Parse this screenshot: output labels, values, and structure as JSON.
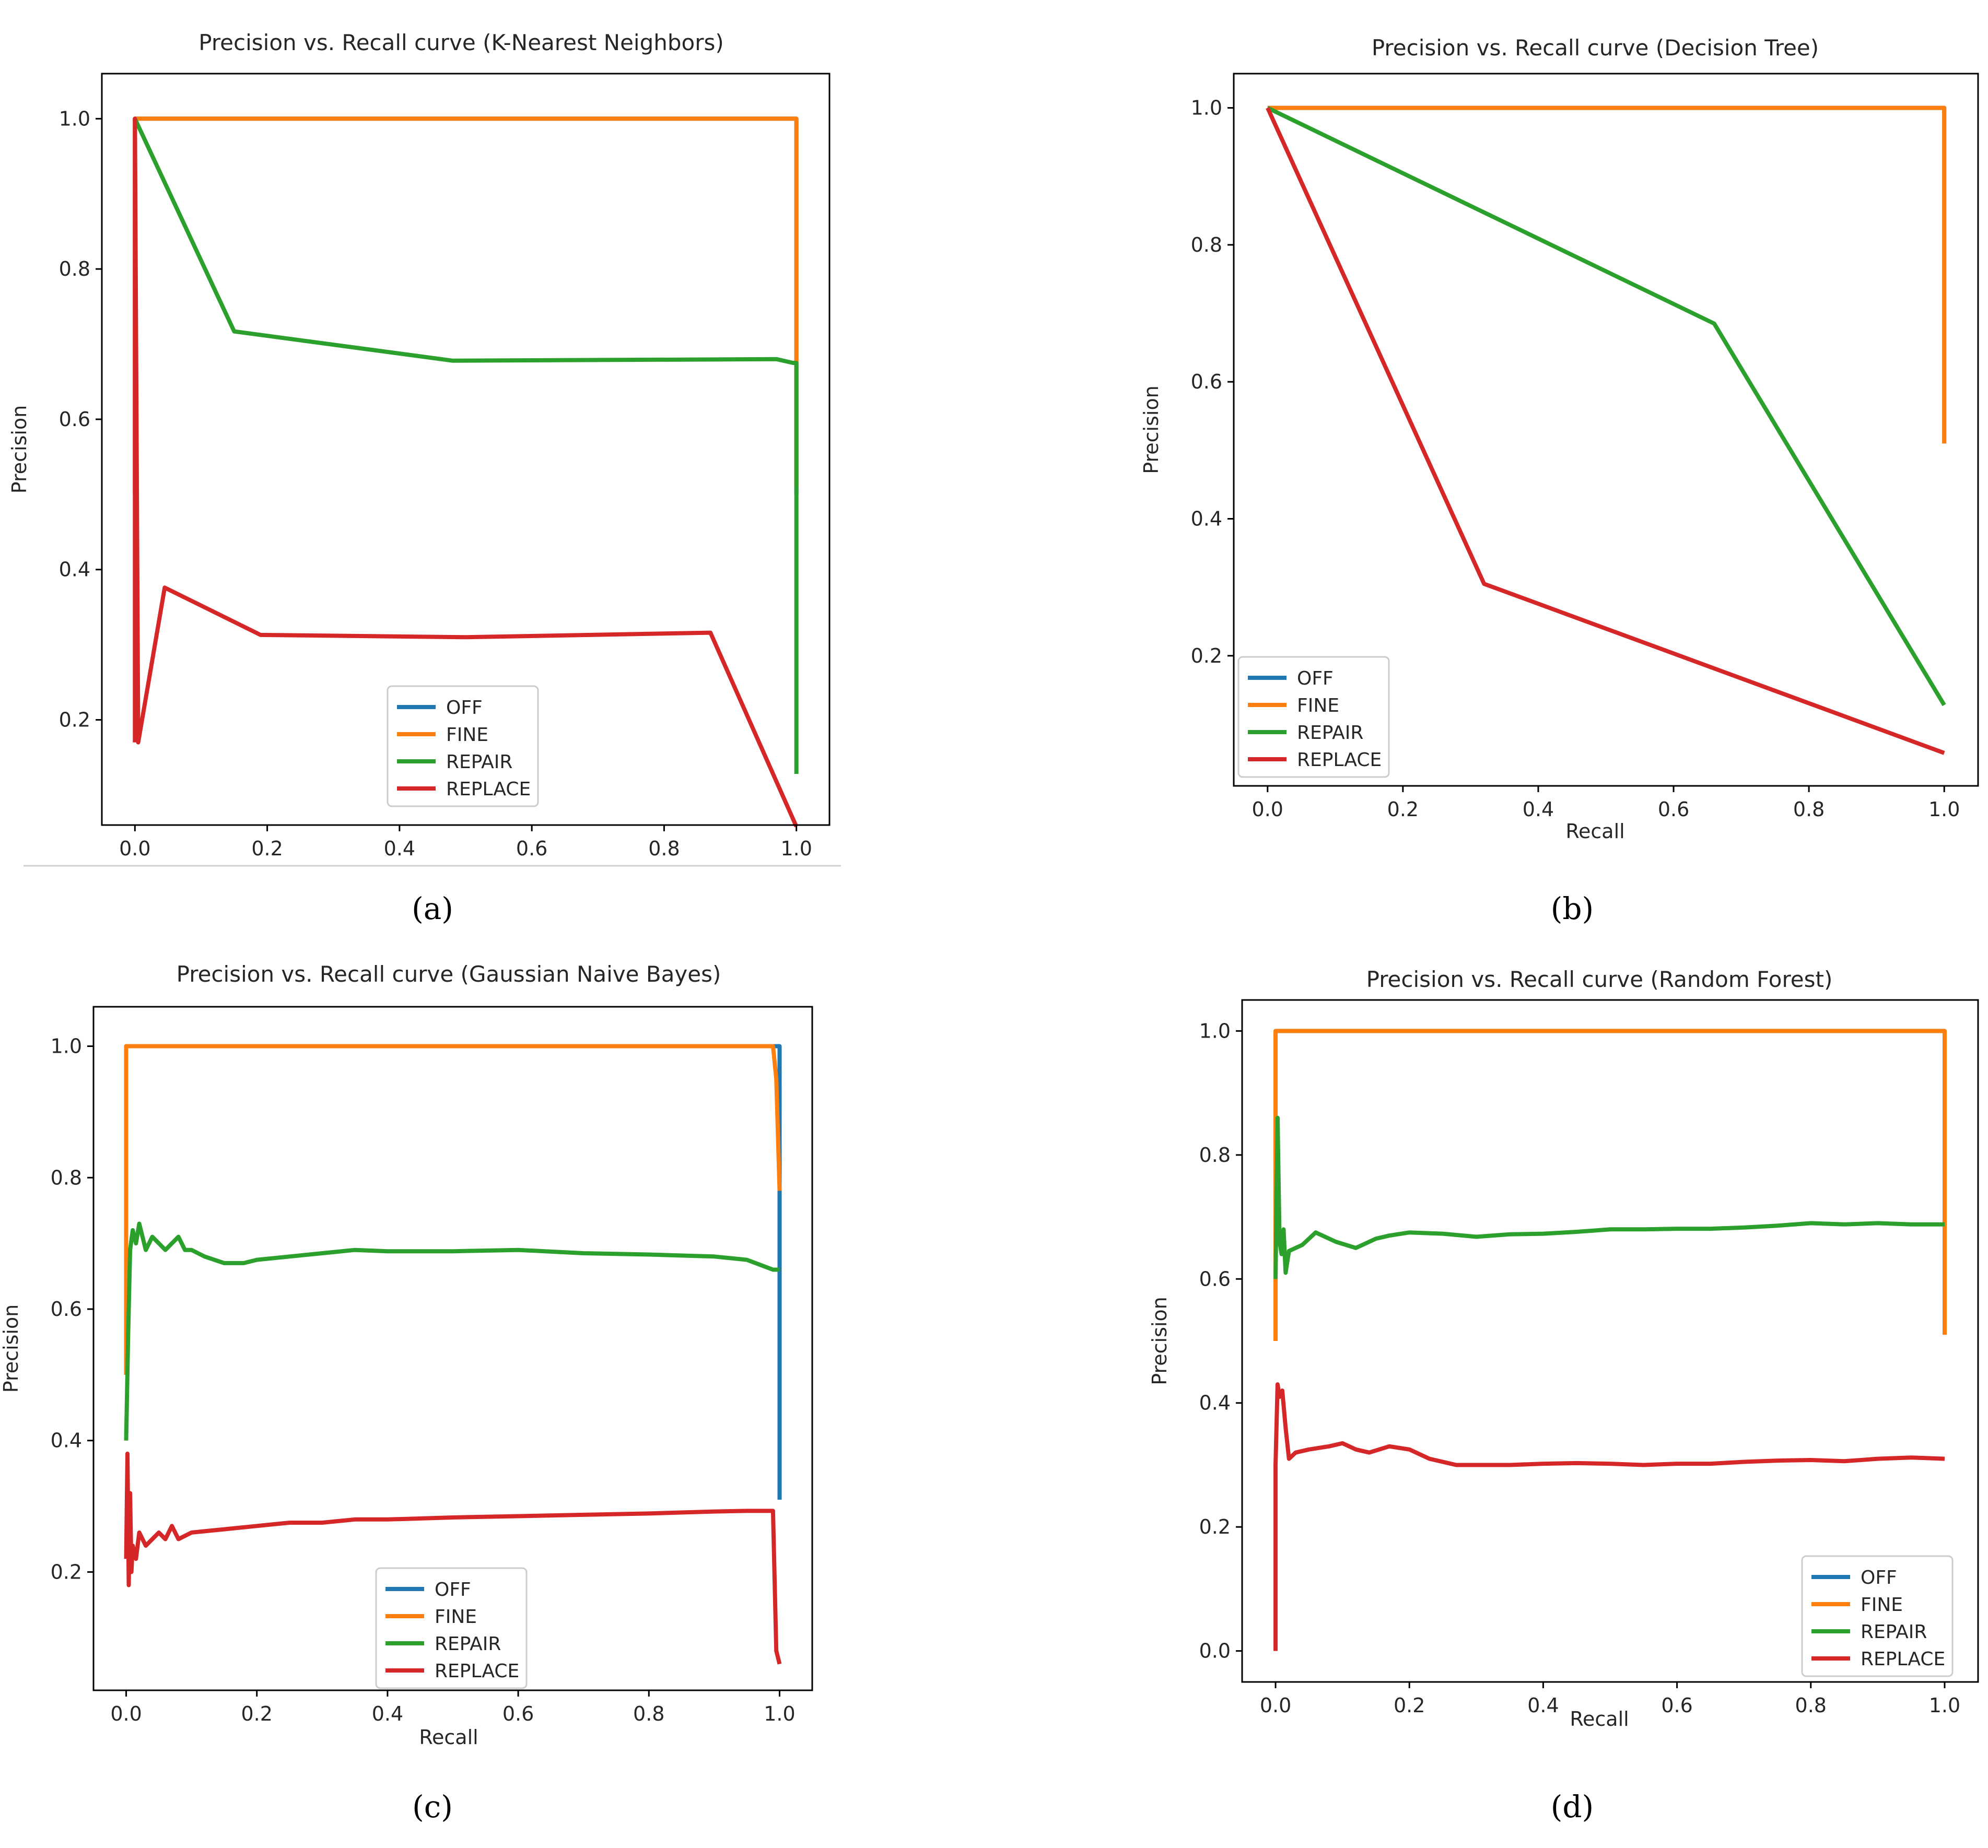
{
  "colors": {
    "OFF": "#1f77b4",
    "FINE": "#ff7f0e",
    "REPAIR": "#2ca02c",
    "REPLACE": "#d62728"
  },
  "chart_data": [
    {
      "type": "line",
      "title": "Precision vs. Recall curve (K-Nearest Neighbors)",
      "xlabel": "",
      "ylabel": "Precision",
      "caption": "(a)",
      "xlim": [
        -0.05,
        1.05
      ],
      "ylim": [
        0.06,
        1.06
      ],
      "xticks": [
        "0.0",
        "0.2",
        "0.4",
        "0.6",
        "0.8",
        "1.0"
      ],
      "yticks": [
        "0.2",
        "0.4",
        "0.6",
        "0.8",
        "1.0"
      ],
      "legend": "bottom-center",
      "series": [
        {
          "name": "OFF",
          "color": "#1f77b4",
          "x": [
            0,
            0,
            1.0,
            1.0
          ],
          "y": [
            0.5,
            1.0,
            1.0,
            0.5
          ]
        },
        {
          "name": "FINE",
          "color": "#ff7f0e",
          "x": [
            0,
            0,
            1.0,
            1.0
          ],
          "y": [
            0.5,
            1.0,
            1.0,
            0.51
          ]
        },
        {
          "name": "REPAIR",
          "color": "#2ca02c",
          "x": [
            0,
            0.15,
            0.48,
            0.97,
            0.995,
            1.0,
            1.0
          ],
          "y": [
            1.0,
            0.717,
            0.678,
            0.68,
            0.675,
            0.675,
            0.128
          ]
        },
        {
          "name": "REPLACE",
          "color": "#d62728",
          "x": [
            0,
            0,
            0.005,
            0.045,
            0.19,
            0.5,
            0.87,
            1.0
          ],
          "y": [
            0.17,
            1.0,
            0.17,
            0.376,
            0.313,
            0.31,
            0.316,
            0.058
          ]
        }
      ]
    },
    {
      "type": "line",
      "title": "Precision vs. Recall curve (Decision Tree)",
      "xlabel": "Recall",
      "ylabel": "Precision",
      "caption": "(b)",
      "xlim": [
        -0.05,
        1.05
      ],
      "ylim": [
        0.01,
        1.05
      ],
      "xticks": [
        "0.0",
        "0.2",
        "0.4",
        "0.6",
        "0.8",
        "1.0"
      ],
      "yticks": [
        "0.2",
        "0.4",
        "0.6",
        "0.8",
        "1.0"
      ],
      "legend": "lower-left",
      "series": [
        {
          "name": "OFF",
          "color": "#1f77b4",
          "x": [
            0,
            1.0,
            1.0
          ],
          "y": [
            1.0,
            1.0,
            0.51
          ]
        },
        {
          "name": "FINE",
          "color": "#ff7f0e",
          "x": [
            0,
            1.0,
            1.0
          ],
          "y": [
            1.0,
            1.0,
            0.51
          ]
        },
        {
          "name": "REPAIR",
          "color": "#2ca02c",
          "x": [
            0,
            0.66,
            1.0
          ],
          "y": [
            1.0,
            0.685,
            0.128
          ]
        },
        {
          "name": "REPLACE",
          "color": "#d62728",
          "x": [
            0,
            0.32,
            1.0
          ],
          "y": [
            1.0,
            0.305,
            0.058
          ]
        }
      ]
    },
    {
      "type": "line",
      "title": "Precision vs. Recall curve (Gaussian Naive Bayes)",
      "xlabel": "Recall",
      "ylabel": "Precision",
      "caption": "(c)",
      "xlim": [
        -0.05,
        1.05
      ],
      "ylim": [
        0.02,
        1.06
      ],
      "xticks": [
        "0.0",
        "0.2",
        "0.4",
        "0.6",
        "0.8",
        "1.0"
      ],
      "yticks": [
        "0.2",
        "0.4",
        "0.6",
        "0.8",
        "1.0"
      ],
      "legend": "bottom-center",
      "series": [
        {
          "name": "OFF",
          "color": "#1f77b4",
          "x": [
            0,
            0,
            1.0,
            1.0
          ],
          "y": [
            0.5,
            1.0,
            1.0,
            0.31
          ]
        },
        {
          "name": "FINE",
          "color": "#ff7f0e",
          "x": [
            0,
            0,
            0.99,
            0.995,
            1.0
          ],
          "y": [
            0.5,
            1.0,
            1.0,
            0.95,
            0.78
          ]
        },
        {
          "name": "REPAIR",
          "color": "#2ca02c",
          "x": [
            0,
            0.003,
            0.006,
            0.01,
            0.015,
            0.02,
            0.03,
            0.04,
            0.05,
            0.06,
            0.07,
            0.08,
            0.09,
            0.1,
            0.12,
            0.15,
            0.18,
            0.2,
            0.25,
            0.3,
            0.35,
            0.4,
            0.5,
            0.6,
            0.7,
            0.8,
            0.9,
            0.95,
            0.99,
            1.0
          ],
          "y": [
            0.4,
            0.56,
            0.69,
            0.72,
            0.7,
            0.73,
            0.69,
            0.71,
            0.7,
            0.69,
            0.7,
            0.71,
            0.69,
            0.69,
            0.68,
            0.67,
            0.67,
            0.675,
            0.68,
            0.685,
            0.69,
            0.688,
            0.688,
            0.69,
            0.685,
            0.683,
            0.68,
            0.675,
            0.66,
            0.66
          ]
        },
        {
          "name": "REPLACE",
          "color": "#d62728",
          "x": [
            0,
            0.002,
            0.004,
            0.006,
            0.008,
            0.01,
            0.015,
            0.02,
            0.03,
            0.04,
            0.05,
            0.06,
            0.07,
            0.08,
            0.1,
            0.15,
            0.2,
            0.25,
            0.3,
            0.35,
            0.4,
            0.5,
            0.6,
            0.7,
            0.8,
            0.9,
            0.95,
            0.99,
            0.995,
            1.0
          ],
          "y": [
            0.22,
            0.38,
            0.18,
            0.32,
            0.2,
            0.24,
            0.22,
            0.26,
            0.24,
            0.25,
            0.26,
            0.25,
            0.27,
            0.25,
            0.26,
            0.265,
            0.27,
            0.275,
            0.275,
            0.28,
            0.28,
            0.283,
            0.285,
            0.287,
            0.289,
            0.292,
            0.293,
            0.293,
            0.08,
            0.06
          ]
        }
      ]
    },
    {
      "type": "line",
      "title": "Precision vs. Recall curve (Random Forest)",
      "xlabel": "Recall",
      "ylabel": "Precision",
      "caption": "(d)",
      "xlim": [
        -0.05,
        1.05
      ],
      "ylim": [
        -0.05,
        1.05
      ],
      "xticks": [
        "0.0",
        "0.2",
        "0.4",
        "0.6",
        "0.8",
        "1.0"
      ],
      "yticks": [
        "0.0",
        "0.2",
        "0.4",
        "0.6",
        "0.8",
        "1.0"
      ],
      "legend": "lower-right",
      "series": [
        {
          "name": "OFF",
          "color": "#1f77b4",
          "x": [
            0,
            0,
            1.0,
            1.0
          ],
          "y": [
            0.5,
            1.0,
            1.0,
            0.51
          ]
        },
        {
          "name": "FINE",
          "color": "#ff7f0e",
          "x": [
            0,
            0,
            1.0,
            1.0
          ],
          "y": [
            0.5,
            1.0,
            1.0,
            0.51
          ]
        },
        {
          "name": "REPAIR",
          "color": "#2ca02c",
          "x": [
            0,
            0.003,
            0.006,
            0.009,
            0.012,
            0.015,
            0.02,
            0.04,
            0.06,
            0.09,
            0.12,
            0.15,
            0.17,
            0.2,
            0.25,
            0.3,
            0.35,
            0.4,
            0.45,
            0.5,
            0.55,
            0.6,
            0.65,
            0.7,
            0.75,
            0.8,
            0.85,
            0.9,
            0.95,
            1.0
          ],
          "y": [
            0.6,
            0.86,
            0.66,
            0.64,
            0.68,
            0.61,
            0.645,
            0.655,
            0.675,
            0.66,
            0.65,
            0.665,
            0.67,
            0.675,
            0.673,
            0.668,
            0.672,
            0.673,
            0.676,
            0.68,
            0.68,
            0.681,
            0.681,
            0.683,
            0.686,
            0.69,
            0.688,
            0.69,
            0.688,
            0.688
          ]
        },
        {
          "name": "REPLACE",
          "color": "#d62728",
          "x": [
            0,
            0,
            0.003,
            0.006,
            0.01,
            0.015,
            0.02,
            0.03,
            0.05,
            0.08,
            0.1,
            0.12,
            0.14,
            0.17,
            0.2,
            0.23,
            0.27,
            0.3,
            0.35,
            0.4,
            0.45,
            0.5,
            0.55,
            0.6,
            0.65,
            0.7,
            0.75,
            0.8,
            0.85,
            0.9,
            0.95,
            1.0
          ],
          "y": [
            0.0,
            0.3,
            0.43,
            0.41,
            0.42,
            0.36,
            0.31,
            0.32,
            0.325,
            0.33,
            0.335,
            0.325,
            0.32,
            0.33,
            0.325,
            0.31,
            0.3,
            0.3,
            0.3,
            0.302,
            0.303,
            0.302,
            0.3,
            0.302,
            0.302,
            0.305,
            0.307,
            0.308,
            0.306,
            0.31,
            0.312,
            0.31
          ]
        }
      ]
    }
  ]
}
